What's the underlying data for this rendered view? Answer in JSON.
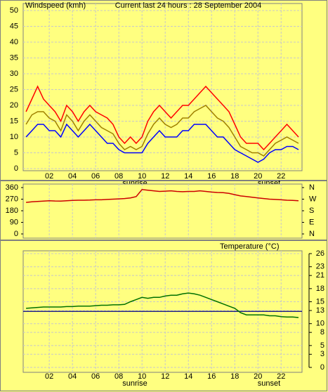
{
  "chart_data": [
    {
      "type": "line",
      "title": "Current last 24 hours : 28 September 2004",
      "annotations": [
        "sunrise",
        "sunset"
      ],
      "x": [
        0,
        0.5,
        1,
        1.5,
        2,
        2.5,
        3,
        3.5,
        4,
        4.5,
        5,
        5.5,
        6,
        6.5,
        7,
        7.5,
        8,
        8.5,
        9,
        9.5,
        10,
        10.5,
        11,
        11.5,
        12,
        12.5,
        13,
        13.5,
        14,
        14.5,
        15,
        15.5,
        16,
        16.5,
        17,
        17.5,
        18,
        18.5,
        19,
        19.5,
        20,
        20.5,
        21,
        21.5,
        22,
        22.5,
        23,
        23.5
      ],
      "xlim": [
        -0.25,
        23.8
      ],
      "xticks": [
        {
          "value": 2,
          "label": "02"
        },
        {
          "value": 4,
          "label": "04"
        },
        {
          "value": 6,
          "label": "06"
        },
        {
          "value": 8,
          "label": "08"
        },
        {
          "value": 10,
          "label": "10"
        },
        {
          "value": 12,
          "label": "12"
        },
        {
          "value": 14,
          "label": "14"
        },
        {
          "value": 16,
          "label": "16"
        },
        {
          "value": 18,
          "label": "18"
        },
        {
          "value": 20,
          "label": "20"
        },
        {
          "value": 22,
          "label": "22"
        }
      ],
      "ylim": [
        0,
        50
      ],
      "yticks": [
        0,
        5,
        10,
        15,
        20,
        25,
        30,
        35,
        40,
        45,
        50
      ],
      "grid": true,
      "series": [
        {
          "name": "Windspeed (kmh)",
          "color": "#ff0000",
          "values": [
            18,
            22,
            26,
            22,
            20,
            18,
            15,
            20,
            18,
            15,
            18,
            20,
            18,
            17,
            16,
            14,
            10,
            8,
            10,
            8,
            10,
            15,
            18,
            20,
            18,
            16,
            18,
            20,
            20,
            22,
            24,
            26,
            24,
            22,
            20,
            18,
            14,
            10,
            8,
            8,
            8,
            6,
            8,
            10,
            12,
            14,
            12,
            10
          ]
        },
        {
          "color": "#a08000",
          "values": [
            14,
            17,
            18,
            18,
            16,
            15,
            12,
            17,
            15,
            12,
            15,
            17,
            15,
            13,
            12,
            11,
            8,
            6,
            7,
            6,
            7,
            11,
            14,
            16,
            14,
            13,
            14,
            16,
            16,
            18,
            19,
            20,
            18,
            16,
            15,
            13,
            10,
            7,
            6,
            5,
            5,
            4,
            6,
            8,
            9,
            10,
            9,
            8
          ]
        },
        {
          "color": "#0000ff",
          "values": [
            10,
            12,
            14,
            14,
            12,
            12,
            10,
            14,
            12,
            10,
            12,
            14,
            12,
            10,
            8,
            8,
            6,
            5,
            5,
            5,
            5,
            8,
            10,
            12,
            10,
            10,
            10,
            12,
            12,
            14,
            14,
            14,
            12,
            10,
            10,
            8,
            6,
            5,
            4,
            3,
            2,
            3,
            5,
            6,
            6,
            7,
            7,
            6
          ]
        }
      ]
    },
    {
      "type": "line",
      "x": [
        0,
        0.5,
        1,
        1.5,
        2,
        2.5,
        3,
        3.5,
        4,
        4.5,
        5,
        5.5,
        6,
        6.5,
        7,
        7.5,
        8,
        8.5,
        9,
        9.5,
        10,
        10.5,
        11,
        11.5,
        12,
        12.5,
        13,
        13.5,
        14,
        14.5,
        15,
        15.5,
        16,
        16.5,
        17,
        17.5,
        18,
        18.5,
        19,
        19.5,
        20,
        20.5,
        21,
        21.5,
        22,
        22.5,
        23,
        23.5
      ],
      "xlim": [
        -0.25,
        23.8
      ],
      "xticks": [
        2,
        4,
        6,
        8,
        10,
        12,
        14,
        16,
        18,
        20,
        22
      ],
      "ylim": [
        0,
        360
      ],
      "yticks": [
        0,
        90,
        180,
        270,
        360
      ],
      "y2lim": [
        0,
        360
      ],
      "y2ticks": [
        {
          "value": 0,
          "label": "N"
        },
        {
          "value": 90,
          "label": "E"
        },
        {
          "value": 180,
          "label": "S"
        },
        {
          "value": 270,
          "label": "W"
        },
        {
          "value": 360,
          "label": "N"
        }
      ],
      "grid": true,
      "series": [
        {
          "color": "#cc0000",
          "values": [
            245,
            250,
            252,
            255,
            258,
            256,
            255,
            258,
            260,
            262,
            262,
            263,
            265,
            265,
            268,
            270,
            272,
            275,
            280,
            290,
            345,
            340,
            335,
            330,
            332,
            335,
            330,
            328,
            330,
            330,
            335,
            330,
            325,
            322,
            320,
            315,
            305,
            295,
            290,
            285,
            280,
            275,
            270,
            268,
            265,
            262,
            260,
            258
          ]
        }
      ]
    },
    {
      "type": "line",
      "annotations": [
        "sunrise",
        "sunset"
      ],
      "x": [
        0,
        0.5,
        1,
        1.5,
        2,
        2.5,
        3,
        3.5,
        4,
        4.5,
        5,
        5.5,
        6,
        6.5,
        7,
        7.5,
        8,
        8.5,
        9,
        9.5,
        10,
        10.5,
        11,
        11.5,
        12,
        12.5,
        13,
        13.5,
        14,
        14.5,
        15,
        15.5,
        16,
        16.5,
        17,
        17.5,
        18,
        18.5,
        19,
        19.5,
        20,
        20.5,
        21,
        21.5,
        22,
        22.5,
        23,
        23.5
      ],
      "xlim": [
        -0.25,
        23.8
      ],
      "xticks": [
        {
          "value": 2,
          "label": "02"
        },
        {
          "value": 4,
          "label": "04"
        },
        {
          "value": 6,
          "label": "06"
        },
        {
          "value": 8,
          "label": "08"
        },
        {
          "value": 10,
          "label": "10"
        },
        {
          "value": 12,
          "label": "12"
        },
        {
          "value": 14,
          "label": "14"
        },
        {
          "value": 16,
          "label": "16"
        },
        {
          "value": 18,
          "label": "18"
        },
        {
          "value": 20,
          "label": "20"
        },
        {
          "value": 22,
          "label": "22"
        }
      ],
      "y2lim": [
        0,
        26
      ],
      "y2ticks": [
        0,
        3,
        5,
        8,
        10,
        13,
        15,
        18,
        21,
        23,
        26
      ],
      "grid": true,
      "hline": {
        "value": 12.8,
        "color": "#000080"
      },
      "series": [
        {
          "name": "Temperature (°C)",
          "color": "#007000",
          "axis": "y2",
          "values": [
            13.5,
            13.6,
            13.7,
            13.8,
            13.8,
            13.8,
            13.8,
            13.9,
            13.9,
            14,
            14,
            14,
            14.1,
            14.2,
            14.2,
            14.3,
            14.3,
            14.4,
            15,
            15.5,
            16,
            15.8,
            16,
            16,
            16.3,
            16.5,
            16.5,
            16.8,
            17,
            16.8,
            16.5,
            16,
            15.5,
            15,
            14.5,
            14,
            13.5,
            12.5,
            12,
            12,
            12,
            12,
            11.8,
            11.8,
            11.6,
            11.5,
            11.5,
            11.4
          ]
        }
      ]
    }
  ]
}
